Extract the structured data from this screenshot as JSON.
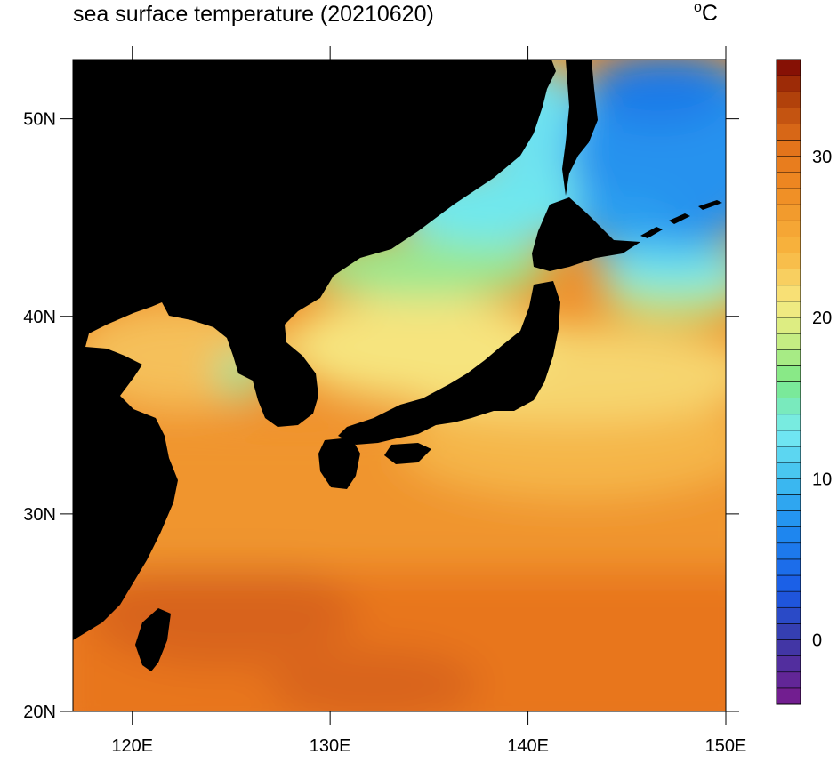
{
  "title": "sea surface temperature (20210620)",
  "units": {
    "degree_mark": "o",
    "unit": "C"
  },
  "map": {
    "projection": "lat-lon",
    "lon_range": [
      117,
      150
    ],
    "lat_range": [
      20,
      53
    ],
    "land_color": "#000000",
    "x_ticks": [
      {
        "value": 120,
        "label": "120E"
      },
      {
        "value": 130,
        "label": "130E"
      },
      {
        "value": 140,
        "label": "140E"
      },
      {
        "value": 150,
        "label": "150E"
      }
    ],
    "y_ticks": [
      {
        "value": 20,
        "label": "20N"
      },
      {
        "value": 30,
        "label": "30N"
      },
      {
        "value": 40,
        "label": "40N"
      },
      {
        "value": 50,
        "label": "50N"
      }
    ]
  },
  "colorbar": {
    "range": [
      -4,
      36
    ],
    "interval": 1,
    "orientation": "vertical",
    "position": "right",
    "tick_labels": [
      {
        "value": 0,
        "label": "0"
      },
      {
        "value": 10,
        "label": "10"
      },
      {
        "value": 20,
        "label": "20"
      },
      {
        "value": 30,
        "label": "30"
      }
    ],
    "colormap_stops": [
      {
        "value": -4,
        "color": "#7a1a8c"
      },
      {
        "value": 0,
        "color": "#3a3aa8"
      },
      {
        "value": 3,
        "color": "#1a5ae6"
      },
      {
        "value": 7,
        "color": "#1e8cf0"
      },
      {
        "value": 10,
        "color": "#40c0f0"
      },
      {
        "value": 13,
        "color": "#78ecf2"
      },
      {
        "value": 16,
        "color": "#7ae888"
      },
      {
        "value": 19,
        "color": "#d4ee82"
      },
      {
        "value": 21,
        "color": "#f8e880"
      },
      {
        "value": 24,
        "color": "#f8b640"
      },
      {
        "value": 28,
        "color": "#ef8a22"
      },
      {
        "value": 31,
        "color": "#e0701a"
      },
      {
        "value": 34,
        "color": "#a83808"
      },
      {
        "value": 36,
        "color": "#7a0404"
      }
    ]
  }
}
